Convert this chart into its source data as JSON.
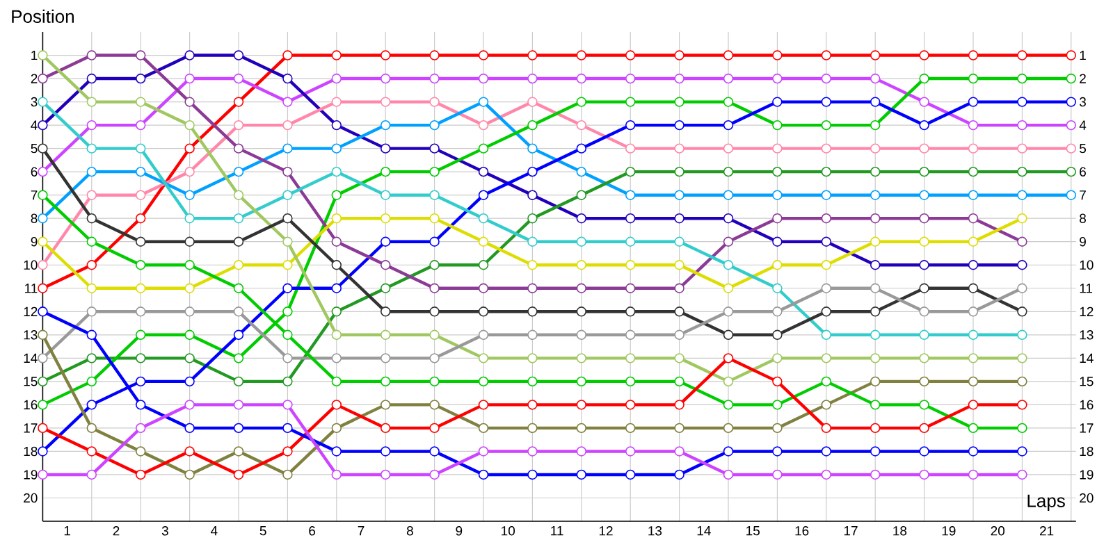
{
  "chart_data": {
    "type": "line",
    "xlabel": "Laps",
    "ylabel": "Position",
    "x": [
      0.5,
      1.5,
      2.5,
      3.5,
      4.5,
      5.5,
      6.5,
      7.5,
      8.5,
      9.5,
      10.5,
      11.5,
      12.5,
      13.5,
      14.5,
      15.5,
      16.5,
      17.5,
      18.5,
      19.5,
      20.5,
      21.5
    ],
    "xlim": [
      0.5,
      21.6
    ],
    "ylim": [
      21,
      0
    ],
    "xticks": [
      {
        "value": 1.5,
        "label": null
      },
      {
        "value": 2.5,
        "label": null
      },
      {
        "value": 3.5,
        "label": null
      },
      {
        "value": 4.5,
        "label": null
      },
      {
        "value": 5.5,
        "label": null
      },
      {
        "value": 6.5,
        "label": null
      },
      {
        "value": 7.5,
        "label": null
      },
      {
        "value": 8.5,
        "label": null
      },
      {
        "value": 9.5,
        "label": null
      },
      {
        "value": 10.5,
        "label": null
      },
      {
        "value": 11.5,
        "label": null
      },
      {
        "value": 12.5,
        "label": null
      },
      {
        "value": 13.5,
        "label": null
      },
      {
        "value": 14.5,
        "label": null
      },
      {
        "value": 15.5,
        "label": null
      },
      {
        "value": 16.5,
        "label": null
      },
      {
        "value": 17.5,
        "label": null
      },
      {
        "value": 18.5,
        "label": null
      },
      {
        "value": 19.5,
        "label": null
      },
      {
        "value": 20.5,
        "label": null
      },
      {
        "value": 21.5,
        "label": null
      },
      1,
      2,
      3,
      4,
      5,
      6,
      7,
      8,
      9,
      10,
      11,
      12,
      13,
      14,
      15,
      16,
      17,
      18,
      19,
      20,
      21
    ],
    "yticks": [
      1,
      2,
      3,
      4,
      5,
      6,
      7,
      8,
      9,
      10,
      11,
      12,
      13,
      14,
      15,
      16,
      17,
      18,
      19,
      20
    ],
    "y2lim": [
      21,
      0
    ],
    "y2ticks": [
      1,
      2,
      3,
      4,
      5,
      6,
      7,
      8,
      9,
      10,
      11,
      12,
      13,
      14,
      15,
      16,
      17,
      18,
      19,
      20
    ],
    "grid": true,
    "marker": "circle",
    "line_style": "solid",
    "series": [
      {
        "color": "#ff0000",
        "values": [
          11,
          10,
          8,
          5,
          3,
          1,
          1,
          1,
          1,
          1,
          1,
          1,
          1,
          1,
          1,
          1,
          1,
          1,
          1,
          1,
          1,
          1
        ]
      },
      {
        "color": "#cc44ff",
        "values": [
          6,
          4,
          4,
          2,
          2,
          3,
          2,
          2,
          2,
          2,
          2,
          2,
          2,
          2,
          2,
          2,
          2,
          2,
          3,
          4,
          4,
          4
        ]
      },
      {
        "color": "#2200bb",
        "values": [
          4,
          2,
          2,
          1,
          1,
          2,
          4,
          5,
          5,
          6,
          7,
          8,
          8,
          8,
          8,
          9,
          9,
          10,
          10,
          10,
          10,
          null
        ]
      },
      {
        "color": "#ff88aa",
        "values": [
          10,
          7,
          7,
          6,
          4,
          4,
          3,
          3,
          3,
          4,
          3,
          4,
          5,
          5,
          5,
          5,
          5,
          5,
          5,
          5,
          5,
          5
        ]
      },
      {
        "color": "#00a0ff",
        "values": [
          8,
          6,
          6,
          7,
          6,
          5,
          5,
          4,
          4,
          3,
          5,
          6,
          7,
          7,
          7,
          7,
          7,
          7,
          7,
          7,
          7,
          7
        ]
      },
      {
        "color": "#229922",
        "values": [
          15,
          14,
          14,
          14,
          15,
          15,
          12,
          11,
          10,
          10,
          8,
          7,
          6,
          6,
          6,
          6,
          6,
          6,
          6,
          6,
          6,
          6
        ]
      },
      {
        "color": "#00cc00",
        "values": [
          16,
          15,
          13,
          13,
          14,
          12,
          7,
          6,
          6,
          5,
          4,
          3,
          3,
          3,
          3,
          4,
          4,
          4,
          2,
          2,
          2,
          2
        ]
      },
      {
        "color": "#0000ff",
        "values": [
          18,
          16,
          15,
          15,
          13,
          11,
          11,
          9,
          9,
          7,
          6,
          5,
          4,
          4,
          4,
          3,
          3,
          3,
          4,
          3,
          3,
          3
        ]
      },
      {
        "color": "#8b3a96",
        "values": [
          2,
          1,
          1,
          3,
          5,
          6,
          9,
          10,
          11,
          11,
          11,
          11,
          11,
          11,
          9,
          8,
          8,
          8,
          8,
          8,
          9,
          null
        ]
      },
      {
        "color": "#dddd00",
        "values": [
          9,
          11,
          11,
          11,
          10,
          10,
          8,
          8,
          8,
          9,
          10,
          10,
          10,
          10,
          11,
          10,
          10,
          9,
          9,
          9,
          8,
          null
        ]
      },
      {
        "color": "#33cccc",
        "values": [
          3,
          5,
          5,
          8,
          8,
          7,
          6,
          7,
          7,
          8,
          9,
          9,
          9,
          9,
          10,
          11,
          13,
          13,
          13,
          13,
          13,
          null
        ]
      },
      {
        "color": "#a0c860",
        "values": [
          1,
          3,
          3,
          4,
          7,
          9,
          13,
          13,
          13,
          14,
          14,
          14,
          14,
          14,
          15,
          14,
          14,
          14,
          14,
          14,
          14,
          null
        ]
      },
      {
        "color": "#333333",
        "values": [
          5,
          8,
          9,
          9,
          9,
          8,
          10,
          12,
          12,
          12,
          12,
          12,
          12,
          12,
          13,
          13,
          12,
          12,
          11,
          11,
          12,
          null
        ]
      },
      {
        "color": "#999999",
        "values": [
          14,
          12,
          12,
          12,
          12,
          14,
          14,
          14,
          14,
          13,
          13,
          13,
          13,
          13,
          12,
          12,
          11,
          11,
          12,
          12,
          11,
          null
        ]
      },
      {
        "color": "#808040",
        "values": [
          13,
          17,
          18,
          19,
          18,
          19,
          17,
          16,
          16,
          17,
          17,
          17,
          17,
          17,
          17,
          17,
          16,
          15,
          15,
          15,
          15,
          null
        ]
      },
      {
        "color": "#00cc00",
        "values": [
          7,
          9,
          10,
          10,
          11,
          13,
          15,
          15,
          15,
          15,
          15,
          15,
          15,
          15,
          16,
          16,
          15,
          16,
          16,
          17,
          17,
          null
        ]
      },
      {
        "color": "#ff0000",
        "values": [
          17,
          18,
          19,
          18,
          19,
          18,
          16,
          17,
          17,
          16,
          16,
          16,
          16,
          16,
          14,
          15,
          17,
          17,
          17,
          16,
          16,
          null
        ]
      },
      {
        "color": "#0000ff",
        "values": [
          12,
          13,
          16,
          17,
          17,
          17,
          18,
          18,
          18,
          19,
          19,
          19,
          19,
          19,
          18,
          18,
          18,
          18,
          18,
          18,
          18,
          null
        ]
      },
      {
        "color": "#cc44ff",
        "values": [
          19,
          19,
          17,
          16,
          16,
          16,
          19,
          19,
          19,
          18,
          18,
          18,
          18,
          18,
          19,
          19,
          19,
          19,
          19,
          19,
          19,
          null
        ]
      }
    ]
  }
}
